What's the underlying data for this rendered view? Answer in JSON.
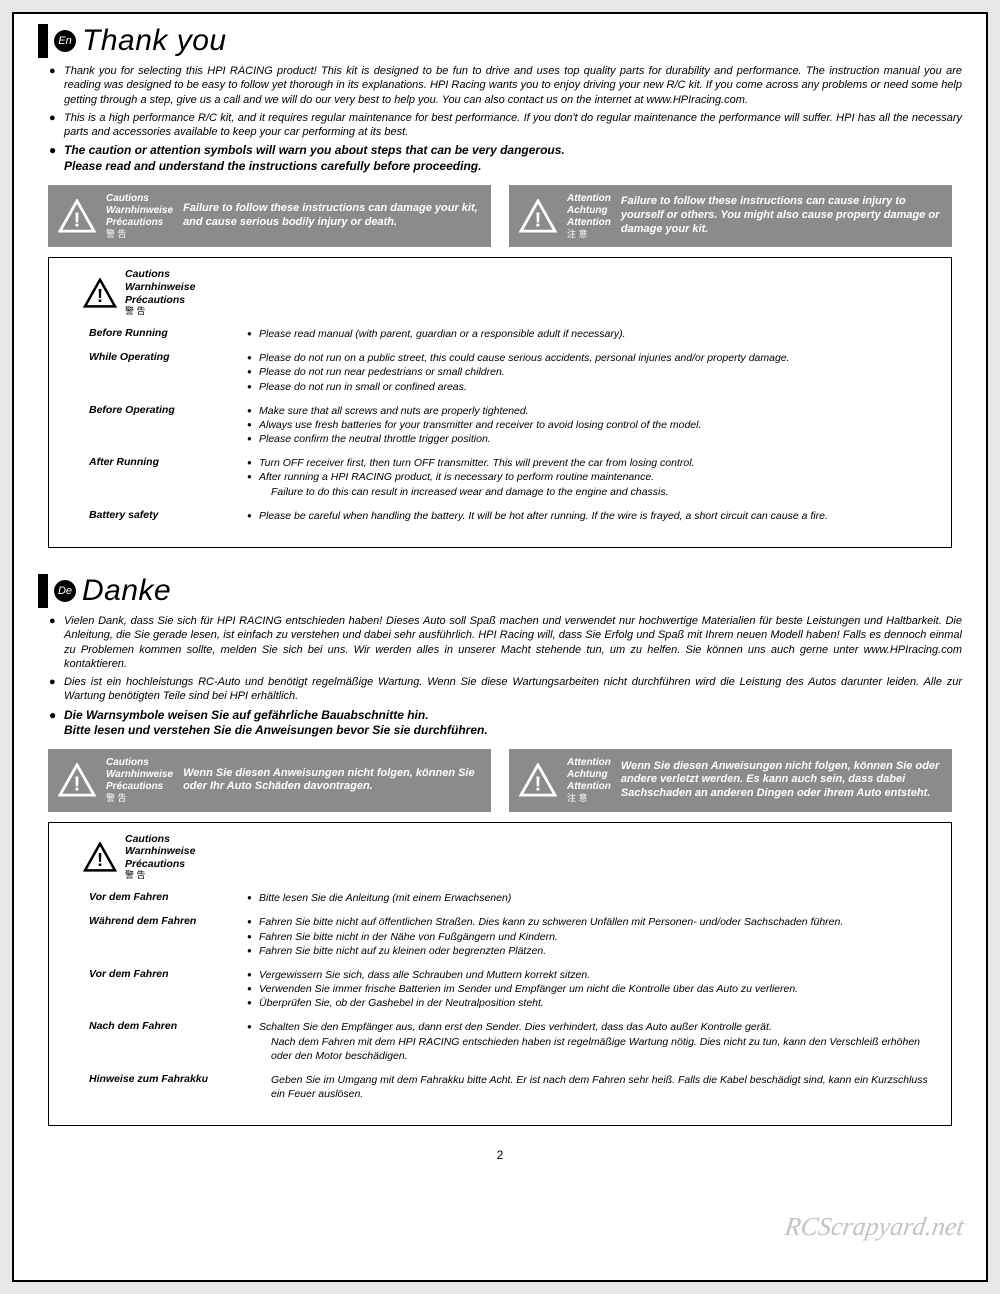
{
  "page_number": "2",
  "watermark": "RCScrapyard.net",
  "warn_labels": {
    "cautions": "Cautions",
    "warnhinweise": "Warnhinweise",
    "precautions": "Précautions",
    "cautions_cjk": "警 告",
    "attention": "Attention",
    "achtung": "Achtung",
    "attention2": "Attention",
    "attention_cjk": "注 意"
  },
  "en": {
    "lang_code": "En",
    "title": "Thank you",
    "intro": [
      "Thank you for selecting this HPI RACING product! This kit is designed to be fun to drive and uses top quality parts for durability and performance. The instruction manual you are reading was designed to be easy to follow yet thorough in its explanations. HPI Racing wants you to enjoy driving your new R/C kit. If you come across any problems or need some help getting through a step, give us a call and we will do our very best to help you. You can also contact us on the internet at www.HPIracing.com.",
      "This is a high performance R/C kit, and it requires regular maintenance for best performance. If you don't do regular maintenance the performance will suffer. HPI has all the necessary parts and accessories available to keep your car performing at its best."
    ],
    "intro_bold": "The caution or attention symbols will warn you about steps that can be very dangerous.\nPlease read and understand the instructions carefully before proceeding.",
    "warn_caution": "Failure to follow these instructions can damage your kit, and cause serious bodily injury or death.",
    "warn_attention": "Failure to follow these instructions can cause injury to yourself or others. You might also cause property damage or damage your kit.",
    "rules": [
      {
        "label": "Before Running",
        "items": [
          "Please read manual (with parent, guardian or a responsible adult if necessary)."
        ]
      },
      {
        "label": "While Operating",
        "items": [
          "Please do not run on a public street, this could cause serious accidents, personal injuries and/or property damage.",
          "Please do not run near pedestrians or small children.",
          "Please do not run in small or confined areas."
        ]
      },
      {
        "label": "Before Operating",
        "items": [
          "Make sure that all screws and nuts are properly tightened.",
          "Always use fresh batteries for your transmitter and receiver to avoid losing control of the model.",
          "Please confirm the neutral throttle trigger position."
        ]
      },
      {
        "label": "After Running",
        "items": [
          "Turn OFF receiver first, then turn OFF transmitter. This will prevent the car from losing control.",
          "After running a HPI RACING product, it is necessary to perform routine maintenance.",
          "Failure to do this can result in increased wear and damage to the engine and chassis."
        ],
        "indent_last": true
      },
      {
        "label": "Battery safety",
        "items": [
          "Please be careful when handling the battery. It will be hot after running. If the wire is frayed, a short circuit can cause a fire."
        ]
      }
    ]
  },
  "de": {
    "lang_code": "De",
    "title": "Danke",
    "intro": [
      "Vielen Dank, dass Sie sich für HPI RACING entschieden haben! Dieses Auto soll Spaß machen und verwendet nur hochwertige Materialien für beste Leistungen und Haltbarkeit. Die Anleitung, die Sie gerade lesen, ist einfach zu verstehen und dabei sehr ausführlich. HPI Racing will, dass Sie Erfolg und Spaß mit Ihrem neuen Modell haben! Falls es dennoch einmal zu Problemen kommen sollte, melden Sie sich bei uns. Wir werden alles in unserer Macht stehende tun, um zu helfen. Sie können uns auch gerne unter www.HPIracing.com kontaktieren.",
      "Dies ist ein hochleistungs RC-Auto und benötigt regelmäßige Wartung. Wenn Sie diese Wartungsarbeiten nicht durchführen wird die Leistung des Autos darunter leiden. Alle zur Wartung benötigten Teile sind bei HPI erhältlich."
    ],
    "intro_bold": "Die Warnsymbole weisen Sie auf gefährliche Bauabschnitte hin.\nBitte lesen und verstehen Sie die Anweisungen bevor Sie sie durchführen.",
    "warn_caution": "Wenn Sie diesen Anweisungen nicht folgen, können Sie oder Ihr Auto Schäden davontragen.",
    "warn_attention": "Wenn Sie diesen Anweisungen nicht folgen, können Sie oder andere verletzt werden. Es kann auch sein, dass dabei Sachschaden an anderen Dingen oder ihrem Auto entsteht.",
    "rules": [
      {
        "label": "Vor dem Fahren",
        "items": [
          "Bitte lesen Sie die Anleitung (mit einem Erwachsenen)"
        ]
      },
      {
        "label": "Während dem Fahren",
        "items": [
          "Fahren Sie bitte nicht auf öffentlichen Straßen. Dies kann zu schweren Unfällen mit Personen- und/oder Sachschaden führen.",
          "Fahren Sie bitte nicht in der Nähe von Fußgängern und Kindern.",
          "Fahren Sie bitte nicht auf zu kleinen oder begrenzten Plätzen."
        ]
      },
      {
        "label": "Vor dem Fahren",
        "items": [
          "Vergewissern Sie sich, dass alle Schrauben und Muttern korrekt sitzen.",
          "Verwenden Sie immer frische Batterien im Sender und Empfänger um nicht die Kontrolle über das Auto zu verlieren.",
          "Überprüfen Sie, ob der Gashebel in der Neutralposition steht."
        ]
      },
      {
        "label": "Nach dem Fahren",
        "items": [
          "Schalten Sie den Empfänger aus, dann erst den Sender. Dies verhindert, dass das Auto außer Kontrolle gerät.",
          "Nach dem Fahren mit dem HPI RACING entschieden haben ist regelmäßige Wartung nötig. Dies nicht zu tun, kann den Verschleiß erhöhen oder den Motor beschädigen."
        ],
        "indent_last": true
      },
      {
        "label": "Hinweise zum Fahrakku",
        "items": [
          "Geben Sie im Umgang mit dem Fahrakku bitte Acht. Er ist nach dem Fahren sehr heiß. Falls die Kabel beschädigt sind, kann ein Kurzschluss ein Feuer auslösen."
        ],
        "indent_last": true
      }
    ]
  }
}
